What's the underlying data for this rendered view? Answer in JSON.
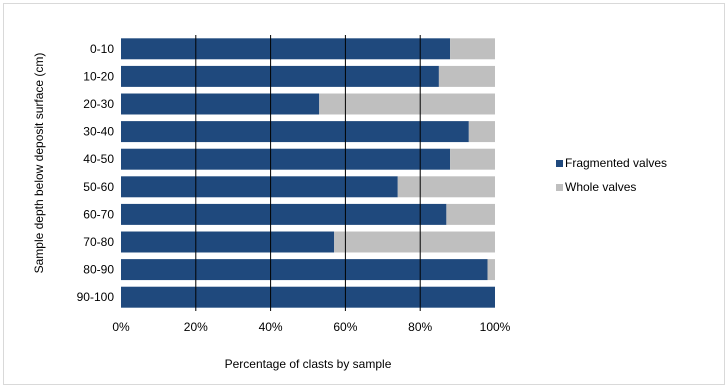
{
  "chart_data": {
    "type": "bar",
    "orientation": "horizontal",
    "stacked": "percent",
    "title": "",
    "xlabel": "Percentage of clasts by sample",
    "ylabel": "Sample depth below deposit surface (cm)",
    "xlim": [
      0,
      100
    ],
    "x_ticks": [
      "0%",
      "20%",
      "40%",
      "60%",
      "80%",
      "100%"
    ],
    "categories": [
      "0-10",
      "10-20",
      "20-30",
      "30-40",
      "40-50",
      "50-60",
      "60-70",
      "70-80",
      "80-90",
      "90-100"
    ],
    "series": [
      {
        "name": "Fragmented valves",
        "color": "#1f497d",
        "values": [
          88,
          85,
          53,
          93,
          88,
          74,
          87,
          57,
          98,
          100
        ]
      },
      {
        "name": "Whole valves",
        "color": "#bfbfbf",
        "values": [
          12,
          15,
          47,
          7,
          12,
          26,
          13,
          43,
          2,
          0
        ]
      }
    ],
    "grid": "vertical-major",
    "legend_position": "right"
  }
}
